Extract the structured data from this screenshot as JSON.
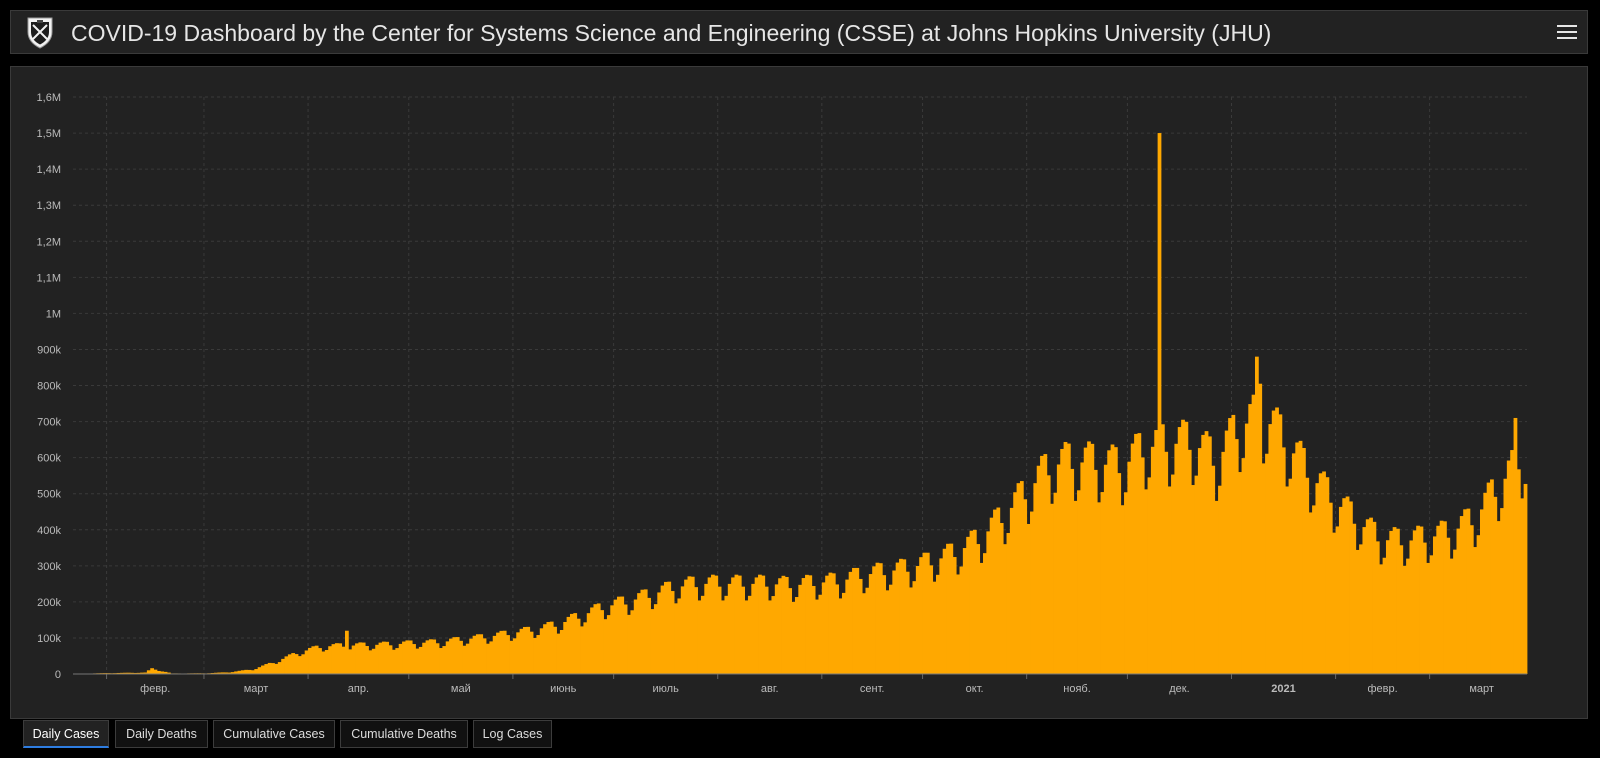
{
  "header": {
    "title": "COVID-19 Dashboard by the Center for Systems Science and Engineering (CSSE) at Johns Hopkins University (JHU)",
    "logo_icon": "jhu-shield-icon",
    "menu_icon": "hamburger-menu-icon"
  },
  "tabs": [
    {
      "label": "Daily Cases",
      "active": true
    },
    {
      "label": "Daily Deaths",
      "active": false
    },
    {
      "label": "Cumulative Cases",
      "active": false
    },
    {
      "label": "Cumulative Deaths",
      "active": false
    },
    {
      "label": "Log Cases",
      "active": false
    }
  ],
  "colors": {
    "bar": "#FFA800",
    "background": "#222222",
    "grid": "#3a3a3a",
    "text": "#bbbbbb",
    "active_tab": "#2e7de1"
  },
  "chart_data": {
    "type": "bar",
    "title": "",
    "xlabel": "",
    "ylabel": "",
    "ylim": [
      0,
      1600000
    ],
    "yticks": [
      {
        "value": 0,
        "label": "0"
      },
      {
        "value": 100000,
        "label": "100k"
      },
      {
        "value": 200000,
        "label": "200k"
      },
      {
        "value": 300000,
        "label": "300k"
      },
      {
        "value": 400000,
        "label": "400k"
      },
      {
        "value": 500000,
        "label": "500k"
      },
      {
        "value": 600000,
        "label": "600k"
      },
      {
        "value": 700000,
        "label": "700k"
      },
      {
        "value": 800000,
        "label": "800k"
      },
      {
        "value": 900000,
        "label": "900k"
      },
      {
        "value": 1000000,
        "label": "1M"
      },
      {
        "value": 1100000,
        "label": "1,1M"
      },
      {
        "value": 1200000,
        "label": "1,2M"
      },
      {
        "value": 1300000,
        "label": "1,3M"
      },
      {
        "value": 1400000,
        "label": "1,4M"
      },
      {
        "value": 1500000,
        "label": "1,5M"
      },
      {
        "value": 1600000,
        "label": "1,6M"
      }
    ],
    "xrange": [
      "2020-01-22",
      "2021-03-29"
    ],
    "xticks": [
      {
        "date": "2020-02-01",
        "label": "февр.",
        "bold": false
      },
      {
        "date": "2020-03-01",
        "label": "март",
        "bold": false
      },
      {
        "date": "2020-04-01",
        "label": "апр.",
        "bold": false
      },
      {
        "date": "2020-05-01",
        "label": "май",
        "bold": false
      },
      {
        "date": "2020-06-01",
        "label": "июнь",
        "bold": false
      },
      {
        "date": "2020-07-01",
        "label": "июль",
        "bold": false
      },
      {
        "date": "2020-08-01",
        "label": "авг.",
        "bold": false
      },
      {
        "date": "2020-09-01",
        "label": "сент.",
        "bold": false
      },
      {
        "date": "2020-10-01",
        "label": "окт.",
        "bold": false
      },
      {
        "date": "2020-11-01",
        "label": "нояб.",
        "bold": false
      },
      {
        "date": "2020-12-01",
        "label": "дек.",
        "bold": false
      },
      {
        "date": "2021-01-01",
        "label": "2021",
        "bold": true
      },
      {
        "date": "2021-02-01",
        "label": "февр.",
        "bold": false
      },
      {
        "date": "2021-03-01",
        "label": "март",
        "bold": false
      }
    ],
    "grid": true,
    "legend": "none",
    "series": [
      {
        "weekly_key_points": [
          [
            "2020-01-22",
            600
          ],
          [
            "2020-02-01",
            2500
          ],
          [
            "2020-02-12",
            4000
          ],
          [
            "2020-02-14",
            15000
          ],
          [
            "2020-02-20",
            1500
          ],
          [
            "2020-03-01",
            2000
          ],
          [
            "2020-03-08",
            5000
          ],
          [
            "2020-03-15",
            13000
          ],
          [
            "2020-03-22",
            35000
          ],
          [
            "2020-03-29",
            62000
          ],
          [
            "2020-04-05",
            78000
          ],
          [
            "2020-04-12",
            80000
          ],
          [
            "2020-04-19",
            82000
          ],
          [
            "2020-04-26",
            84000
          ],
          [
            "2020-05-03",
            88000
          ],
          [
            "2020-05-10",
            90000
          ],
          [
            "2020-05-17",
            98000
          ],
          [
            "2020-05-24",
            105000
          ],
          [
            "2020-05-31",
            115000
          ],
          [
            "2020-06-07",
            125000
          ],
          [
            "2020-06-14",
            140000
          ],
          [
            "2020-06-21",
            165000
          ],
          [
            "2020-06-28",
            190000
          ],
          [
            "2020-07-05",
            205000
          ],
          [
            "2020-07-12",
            225000
          ],
          [
            "2020-07-19",
            245000
          ],
          [
            "2020-07-26",
            255000
          ],
          [
            "2020-08-02",
            255000
          ],
          [
            "2020-08-09",
            255000
          ],
          [
            "2020-08-16",
            255000
          ],
          [
            "2020-08-23",
            250000
          ],
          [
            "2020-08-30",
            258000
          ],
          [
            "2020-09-06",
            262000
          ],
          [
            "2020-09-13",
            280000
          ],
          [
            "2020-09-20",
            290000
          ],
          [
            "2020-09-27",
            300000
          ],
          [
            "2020-10-04",
            320000
          ],
          [
            "2020-10-11",
            345000
          ],
          [
            "2020-10-18",
            385000
          ],
          [
            "2020-10-25",
            450000
          ],
          [
            "2020-11-01",
            520000
          ],
          [
            "2020-11-08",
            590000
          ],
          [
            "2020-11-15",
            600000
          ],
          [
            "2020-11-22",
            595000
          ],
          [
            "2020-11-29",
            585000
          ],
          [
            "2020-12-06",
            640000
          ],
          [
            "2020-12-13",
            650000
          ],
          [
            "2020-12-20",
            655000
          ],
          [
            "2020-12-27",
            600000
          ],
          [
            "2021-01-03",
            700000
          ],
          [
            "2021-01-10",
            730000
          ],
          [
            "2021-01-17",
            650000
          ],
          [
            "2021-01-24",
            560000
          ],
          [
            "2021-01-31",
            490000
          ],
          [
            "2021-02-07",
            430000
          ],
          [
            "2021-02-14",
            380000
          ],
          [
            "2021-02-21",
            375000
          ],
          [
            "2021-02-28",
            385000
          ],
          [
            "2021-03-07",
            400000
          ],
          [
            "2021-03-14",
            440000
          ],
          [
            "2021-03-21",
            530000
          ],
          [
            "2021-03-29",
            620000
          ]
        ],
        "weekly_pattern": [
          0.85,
          0.98,
          1.05,
          1.08,
          1.07,
          0.95,
          0.8
        ],
        "outliers": [
          [
            "2020-04-12",
            120000
          ],
          [
            "2020-12-10",
            1500000
          ],
          [
            "2021-01-08",
            880000
          ],
          [
            "2021-01-09",
            805000
          ],
          [
            "2021-03-26",
            710000
          ]
        ]
      }
    ]
  }
}
